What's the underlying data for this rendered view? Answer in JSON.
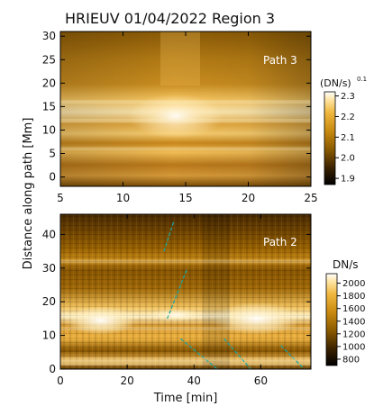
{
  "figure": {
    "title": "HRIEUV 01/04/2022   Region 3",
    "ylabel": "Distance along path [Mm]",
    "xlabel_bottom": "Time [min]"
  },
  "colors": {
    "cmap": [
      "#000000",
      "#3a2200",
      "#8a5a00",
      "#c98a10",
      "#f0b840",
      "#ffe6a8",
      "#ffffff"
    ],
    "path_lines": "#1fa39a"
  },
  "chart_data": [
    {
      "type": "heatmap",
      "panel": "top",
      "title": "HRIEUV 01/04/2022   Region 3",
      "annotation": "Path  3",
      "xlabel": "",
      "ylabel": "Distance along path [Mm]",
      "xlim": [
        5,
        25
      ],
      "ylim": [
        -2,
        31
      ],
      "x_ticks": [
        5,
        10,
        15,
        20,
        25
      ],
      "y_ticks": [
        0,
        5,
        10,
        15,
        20,
        25,
        30
      ],
      "colorbar": {
        "label": "(DN/s)",
        "exponent": "0.1",
        "ticks": [
          "2.3",
          "2.2",
          "2.1",
          "2.0",
          "1.9"
        ],
        "range": [
          1.87,
          2.32
        ]
      },
      "bright_bands_distance": [
        12,
        16,
        6
      ]
    },
    {
      "type": "heatmap",
      "panel": "bottom",
      "annotation": "Path  2",
      "xlabel": "Time [min]",
      "ylabel": "Distance along path [Mm]",
      "xlim": [
        0,
        75
      ],
      "ylim": [
        0,
        46
      ],
      "x_ticks": [
        0,
        20,
        40,
        60
      ],
      "y_ticks": [
        0,
        10,
        20,
        30,
        40
      ],
      "colorbar": {
        "label": "DN/s",
        "ticks": [
          "2000",
          "1800",
          "1600",
          "1400",
          "1200",
          "1000",
          "800"
        ],
        "range": [
          700,
          2150
        ]
      },
      "bright_bands_distance": [
        16,
        12,
        32,
        3
      ],
      "overlay_lines": [
        {
          "t": [
            31,
            34
          ],
          "d": [
            35,
            44
          ]
        },
        {
          "t": [
            32,
            38
          ],
          "d": [
            15,
            30
          ]
        },
        {
          "t": [
            36,
            47
          ],
          "d": [
            9,
            0
          ]
        },
        {
          "t": [
            49,
            57
          ],
          "d": [
            9,
            0
          ]
        },
        {
          "t": [
            66,
            73
          ],
          "d": [
            7,
            0
          ]
        }
      ]
    }
  ]
}
